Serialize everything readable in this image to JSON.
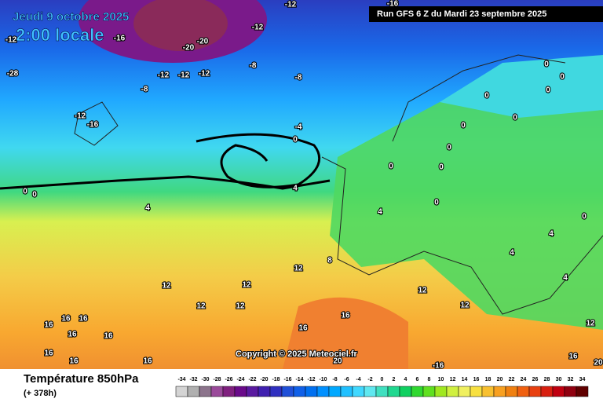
{
  "header": {
    "date": "Jeudi 9 octobre 2025",
    "time": "2:00 locale",
    "run": "Run GFS 6 Z du Mardi 23 septembre 2025"
  },
  "copyright": "Copyright © 2025 Meteociel.fr",
  "footer": {
    "title": "Température 850hPa",
    "lead": "(+ 378h)"
  },
  "legend": {
    "ticks": [
      -34,
      -32,
      -30,
      -28,
      -26,
      -24,
      -22,
      -20,
      -18,
      -16,
      -14,
      -12,
      -10,
      -8,
      -6,
      -4,
      -2,
      0,
      2,
      4,
      6,
      8,
      10,
      12,
      14,
      16,
      18,
      20,
      22,
      24,
      26,
      28,
      30,
      32,
      34
    ],
    "colors": [
      "#d4d4d4",
      "#b0b0b0",
      "#8c748c",
      "#9a4a9a",
      "#80207f",
      "#6a0a8a",
      "#5a1aa0",
      "#4020b0",
      "#3030c0",
      "#2050d8",
      "#1060e8",
      "#0070f0",
      "#0090ff",
      "#00a8ff",
      "#20c0ff",
      "#40d8ff",
      "#60e8f0",
      "#40e0c0",
      "#20d890",
      "#10d060",
      "#30d830",
      "#60e020",
      "#a0e820",
      "#d0f040",
      "#f0f060",
      "#f8e040",
      "#f8c030",
      "#f8a020",
      "#f08010",
      "#f06010",
      "#e84010",
      "#d82010",
      "#c00010",
      "#900010",
      "#600000"
    ]
  },
  "map": {
    "labels": [
      -12,
      -12,
      -12,
      -16,
      -20,
      -20,
      -28,
      -12,
      -12,
      -12,
      -8,
      -8,
      -8,
      -12,
      -16,
      -4,
      0,
      4,
      0,
      0,
      4,
      0,
      0,
      0,
      0,
      0,
      0,
      0,
      0,
      0,
      0,
      0,
      4,
      4,
      4,
      4,
      8,
      12,
      12,
      12,
      12,
      12,
      12,
      12,
      12,
      16,
      16,
      16,
      16,
      16,
      16,
      16,
      16,
      16,
      16,
      16,
      20,
      20,
      -16,
      -16
    ]
  }
}
